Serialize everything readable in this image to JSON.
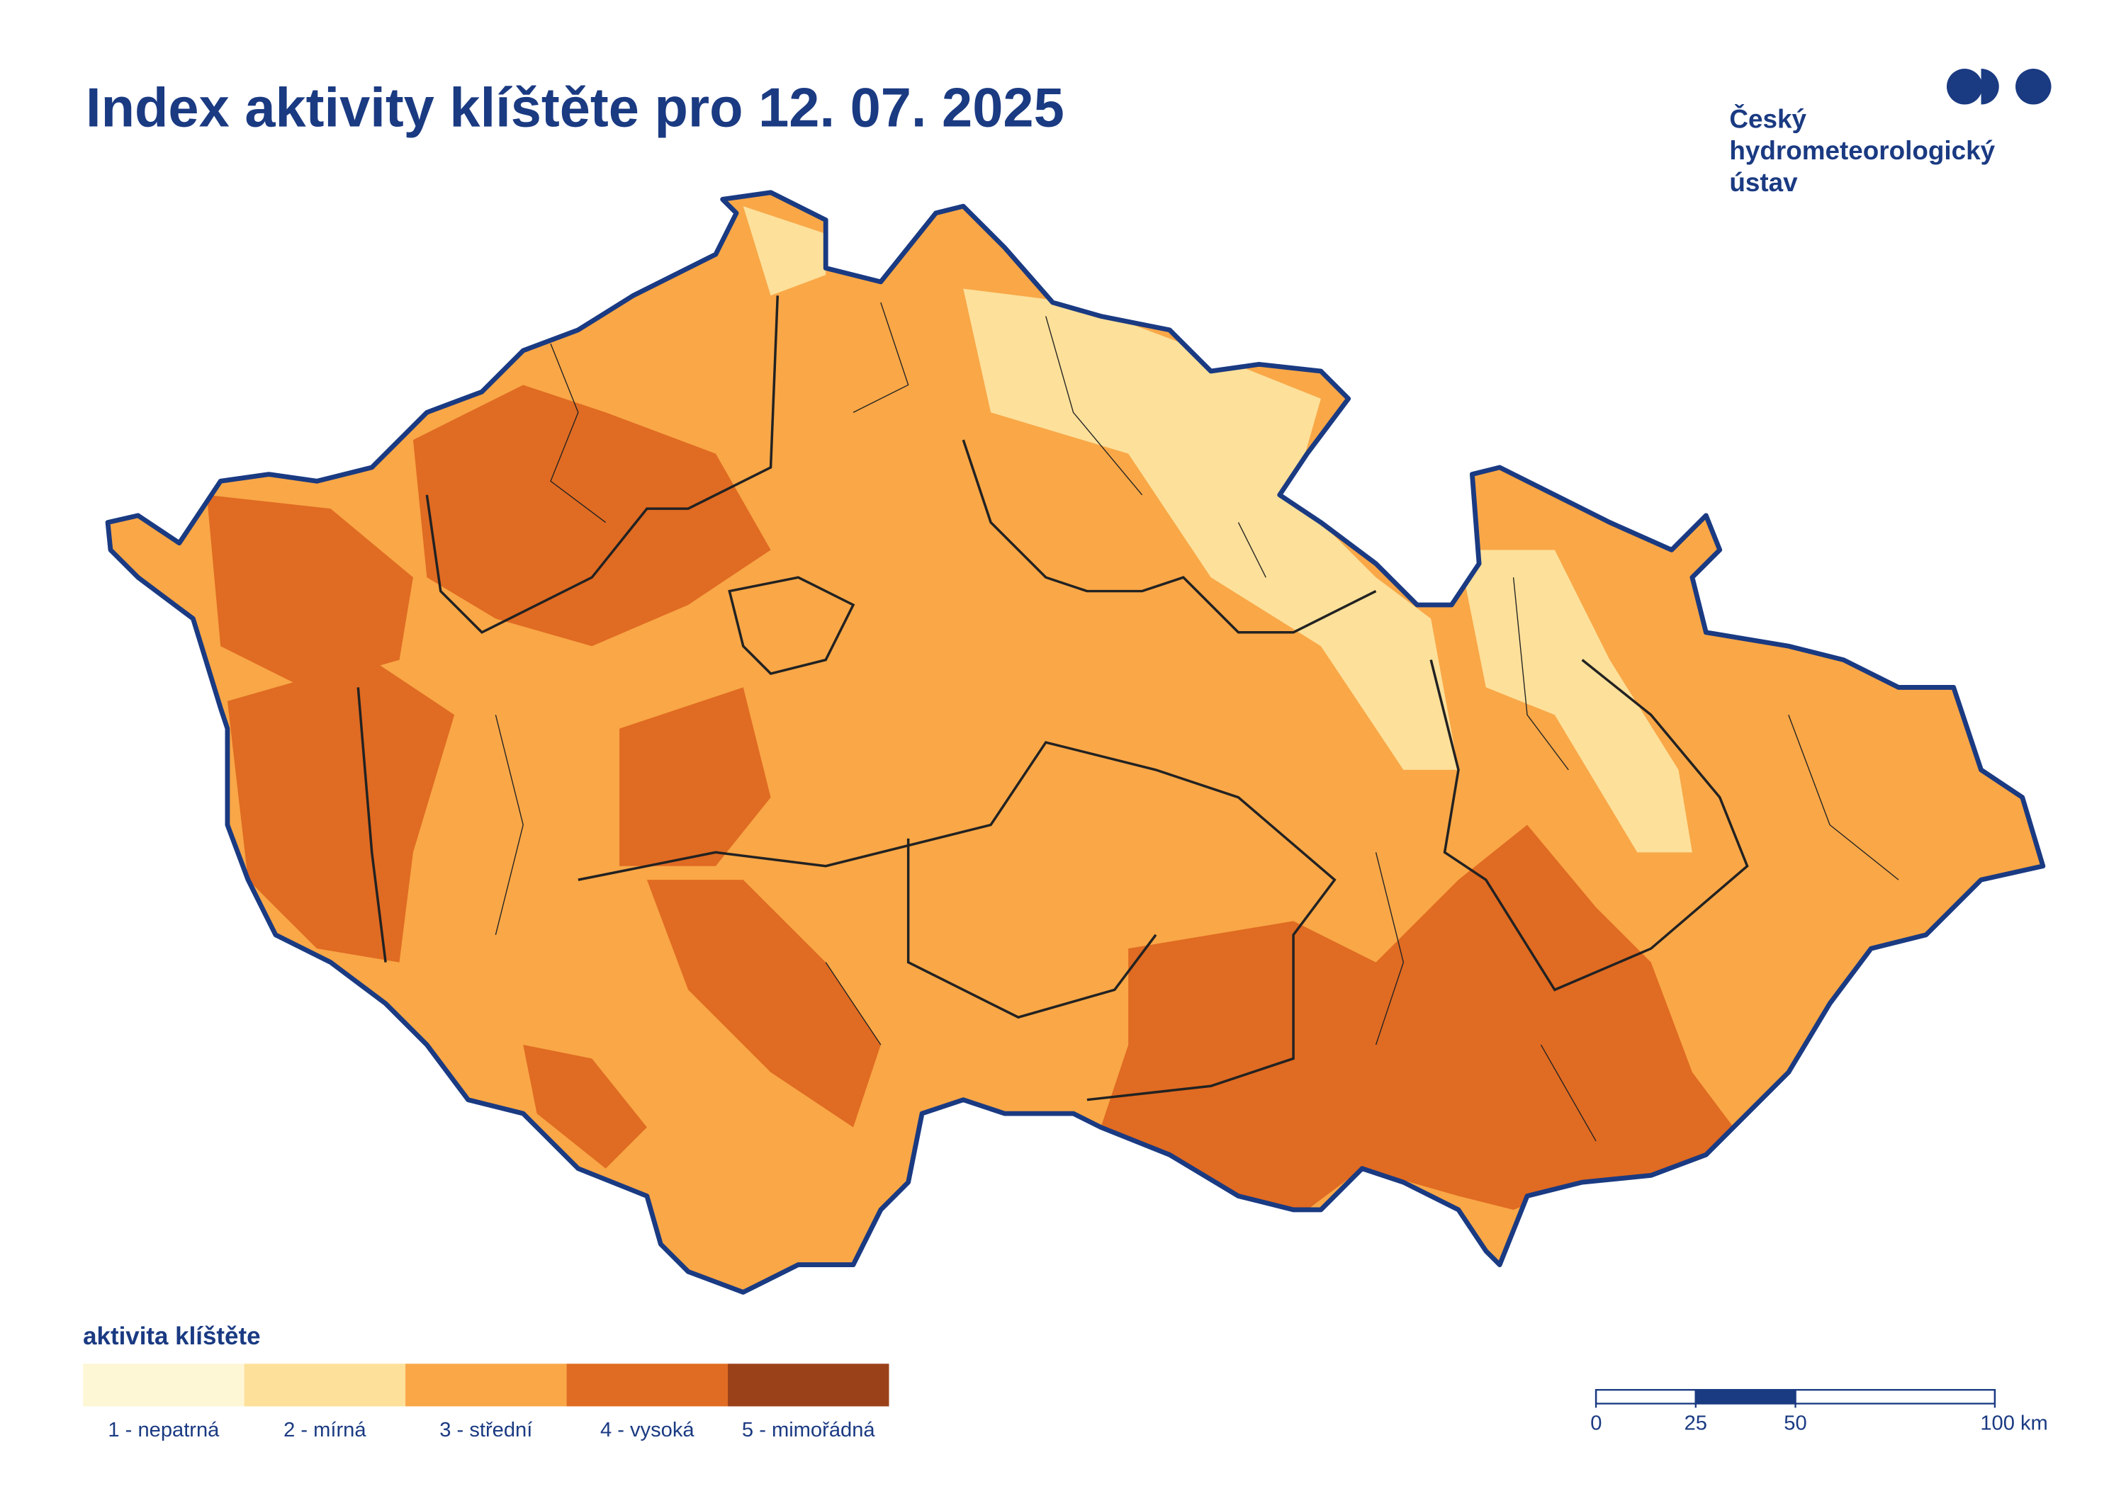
{
  "header": {
    "title": "Index aktivity klíštěte pro 12. 07. 2025",
    "logo_lines": [
      "Český",
      "hydrometeorologický",
      "ústav"
    ]
  },
  "legend": {
    "title": "aktivita klíštěte",
    "items": [
      {
        "label": "1 - nepatrná",
        "color": "#fef7d6"
      },
      {
        "label": "2 - mírná",
        "color": "#fde09a"
      },
      {
        "label": "3 - střední",
        "color": "#f9a747"
      },
      {
        "label": "4 - vysoká",
        "color": "#e06b22"
      },
      {
        "label": "5 - mimořádná",
        "color": "#9b4119"
      }
    ]
  },
  "scale_bar": {
    "ticks": [
      0,
      25,
      50,
      {
        "value": 100,
        "label": "100 km"
      }
    ]
  }
}
